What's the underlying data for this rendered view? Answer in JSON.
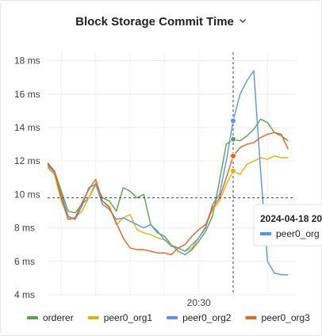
{
  "panel": {
    "title": "Block Storage Commit Time",
    "menu_icon": "chevron-down-icon"
  },
  "chart_data": {
    "type": "line",
    "title": "Block Storage Commit Time",
    "xlabel": "",
    "ylabel": "",
    "y_unit": "ms",
    "ylim": [
      4,
      18.5
    ],
    "y_ticks": [
      "18 ms",
      "16 ms",
      "14 ms",
      "12 ms",
      "10 ms",
      "8 ms",
      "6 ms",
      "4 ms"
    ],
    "y_tick_values": [
      18,
      16,
      14,
      12,
      10,
      8,
      6,
      4
    ],
    "x_range": [
      "20:08",
      "20:44"
    ],
    "x_ticks": [
      "20:30"
    ],
    "x_tick_values": [
      "20:30"
    ],
    "grid": true,
    "legend_position": "bottom",
    "x": [
      "20:08",
      "20:09",
      "20:10",
      "20:11",
      "20:12",
      "20:13",
      "20:14",
      "20:15",
      "20:16",
      "20:17",
      "20:18",
      "20:19",
      "20:20",
      "20:21",
      "20:22",
      "20:23",
      "20:24",
      "20:25",
      "20:26",
      "20:27",
      "20:28",
      "20:29",
      "20:30",
      "20:31",
      "20:32",
      "20:33",
      "20:34",
      "20:35",
      "20:36",
      "20:37",
      "20:38",
      "20:39",
      "20:40",
      "20:41",
      "20:42",
      "20:43"
    ],
    "series": [
      {
        "name": "orderer",
        "color": "#56a64b",
        "values": [
          11.8,
          11.4,
          10.2,
          9.0,
          8.9,
          9.4,
          9.8,
          10.6,
          9.8,
          9.6,
          9.0,
          10.4,
          10.2,
          9.8,
          10.0,
          8.2,
          7.7,
          7.5,
          7.0,
          6.6,
          6.4,
          6.7,
          7.2,
          7.8,
          8.7,
          10.8,
          13.0,
          13.3,
          13.2,
          13.5,
          13.9,
          14.5,
          14.3,
          13.7,
          13.5,
          13.2
        ]
      },
      {
        "name": "peer0_org1",
        "color": "#e0b400",
        "values": [
          11.6,
          11.2,
          9.6,
          8.6,
          8.6,
          9.0,
          9.8,
          10.7,
          9.6,
          9.3,
          8.2,
          8.6,
          8.8,
          7.9,
          7.7,
          7.6,
          7.4,
          7.3,
          7.0,
          6.8,
          6.6,
          6.8,
          7.4,
          8.1,
          9.1,
          9.6,
          10.6,
          11.4,
          11.2,
          11.8,
          12.0,
          12.2,
          12.1,
          12.3,
          12.2,
          12.2
        ]
      },
      {
        "name": "peer0_org2",
        "color": "#5794f2",
        "values": [
          11.7,
          11.3,
          10.0,
          8.7,
          8.5,
          9.3,
          10.4,
          10.6,
          9.4,
          9.1,
          8.5,
          8.6,
          8.4,
          8.2,
          8.0,
          8.2,
          7.8,
          7.3,
          6.9,
          6.8,
          6.6,
          7.0,
          7.4,
          8.0,
          9.4,
          10.0,
          12.0,
          14.4,
          16.0,
          16.8,
          17.4,
          11.3,
          6.0,
          5.3,
          5.2,
          5.2
        ]
      },
      {
        "name": "peer0_org3",
        "color": "#f2611c",
        "values": [
          11.9,
          11.4,
          9.8,
          8.5,
          8.6,
          9.5,
          10.3,
          10.9,
          9.6,
          9.2,
          8.3,
          7.4,
          6.8,
          6.7,
          6.7,
          6.6,
          6.5,
          6.5,
          6.4,
          6.8,
          7.0,
          7.5,
          7.9,
          8.2,
          9.2,
          9.8,
          11.0,
          12.3,
          12.8,
          13.0,
          13.1,
          13.4,
          13.6,
          13.7,
          13.6,
          12.7
        ]
      }
    ],
    "crosshair": {
      "x": "20:35",
      "y": 9.8
    },
    "tooltip": {
      "title": "2024-04-18 20",
      "series_label": "peer0_org"
    }
  }
}
